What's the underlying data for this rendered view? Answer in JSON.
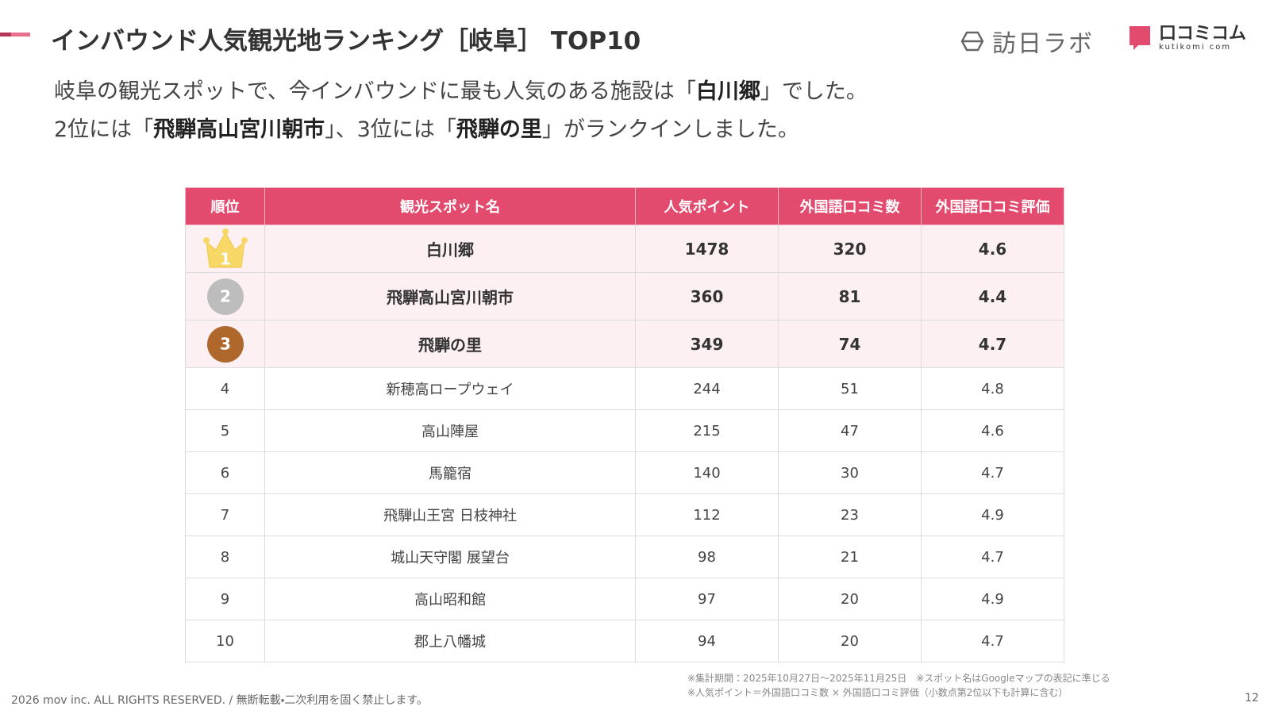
{
  "header": {
    "title": "インバウンド人気観光地ランキング［岐阜］ TOP10",
    "logo_left": "訪日ラボ",
    "logo_right": "口コミコム",
    "logo_right_sub": "kutikomi com"
  },
  "lead": {
    "lines": [
      [
        {
          "text": "岐阜の観光スポットで、今インバウンドに最も人気のある施設は「"
        },
        {
          "text": "白川郷",
          "bold": true
        },
        {
          "text": "」でした。"
        }
      ],
      [
        {
          "text": "2位には「"
        },
        {
          "text": "飛騨高山宮川朝市",
          "bold": true
        },
        {
          "text": "」、3位には「"
        },
        {
          "text": "飛騨の里",
          "bold": true
        },
        {
          "text": "」がランクインしました。"
        }
      ]
    ]
  },
  "table": {
    "columns": [
      "順位",
      "観光スポット名",
      "人気ポイント",
      "外国語口コミ数",
      "外国語口コミ評価"
    ],
    "rows": [
      [
        1,
        "白川郷",
        1478,
        320,
        4.6
      ],
      [
        2,
        "飛騨高山宮川朝市",
        360,
        81,
        4.4
      ],
      [
        3,
        "飛騨の里",
        349,
        74,
        4.7
      ],
      [
        4,
        "新穂高ロープウェイ",
        244,
        51,
        4.8
      ],
      [
        5,
        "高山陣屋",
        215,
        47,
        4.6
      ],
      [
        6,
        "馬籠宿",
        140,
        30,
        4.7
      ],
      [
        7,
        "飛騨山王宮 日枝神社",
        112,
        23,
        4.9
      ],
      [
        8,
        "城山天守閣 展望台",
        98,
        21,
        4.7
      ],
      [
        9,
        "高山昭和館",
        97,
        20,
        4.9
      ],
      [
        10,
        "郡上八幡城",
        94,
        20,
        4.7
      ]
    ]
  },
  "notes": [
    "※集計期間：2025年10月27日〜2025年11月25日　※スポット名はGoogleマップの表記に準じる",
    "※人気ポイント＝外国語口コミ数 × 外国語口コミ評価（小数点第2位以下も計算に含む）"
  ],
  "footer": {
    "copyright": "2026 mov inc. ALL RIGHTS RESERVED. / 無断転載・二次利用を固く禁止します。",
    "page": 12
  }
}
